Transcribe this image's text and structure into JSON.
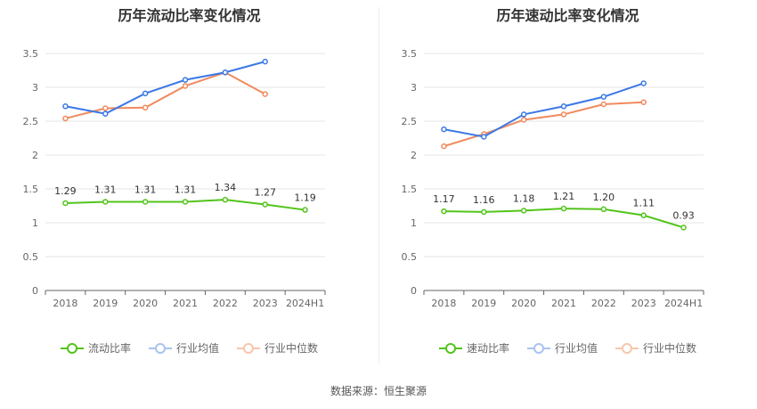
{
  "source_label": "数据来源：恒生聚源",
  "colors": {
    "company": "#52c41a",
    "industry_avg": "#3b78e7",
    "industry_median": "#f08a5d"
  },
  "chart_data": [
    {
      "type": "line",
      "title": "历年流动比率变化情况",
      "categories": [
        "2018",
        "2019",
        "2020",
        "2021",
        "2022",
        "2023",
        "2024H1"
      ],
      "ylim": [
        0,
        3.5
      ],
      "yticks": [
        "0",
        "0.5",
        "1",
        "1.5",
        "2",
        "2.5",
        "3",
        "3.5"
      ],
      "grid": true,
      "legend_position": "bottom",
      "series": [
        {
          "name": "流动比率",
          "values": [
            1.29,
            1.31,
            1.31,
            1.31,
            1.34,
            1.27,
            1.19
          ],
          "labels": [
            "1.29",
            "1.31",
            "1.31",
            "1.31",
            "1.34",
            "1.27",
            "1.19"
          ]
        },
        {
          "name": "行业均值",
          "values": [
            2.72,
            2.61,
            2.91,
            3.11,
            3.22,
            3.38,
            null
          ]
        },
        {
          "name": "行业中位数",
          "values": [
            2.54,
            2.69,
            2.7,
            3.02,
            3.22,
            2.9,
            null
          ]
        }
      ]
    },
    {
      "type": "line",
      "title": "历年速动比率变化情况",
      "categories": [
        "2018",
        "2019",
        "2020",
        "2021",
        "2022",
        "2023",
        "2024H1"
      ],
      "ylim": [
        0,
        3.5
      ],
      "yticks": [
        "0",
        "0.5",
        "1",
        "1.5",
        "2",
        "2.5",
        "3",
        "3.5"
      ],
      "grid": true,
      "legend_position": "bottom",
      "series": [
        {
          "name": "速动比率",
          "values": [
            1.17,
            1.16,
            1.18,
            1.21,
            1.2,
            1.11,
            0.93
          ],
          "labels": [
            "1.17",
            "1.16",
            "1.18",
            "1.21",
            "1.20",
            "1.11",
            "0.93"
          ]
        },
        {
          "name": "行业均值",
          "values": [
            2.38,
            2.27,
            2.6,
            2.72,
            2.86,
            3.06,
            null
          ]
        },
        {
          "name": "行业中位数",
          "values": [
            2.13,
            2.31,
            2.52,
            2.6,
            2.75,
            2.78,
            null
          ]
        }
      ]
    }
  ]
}
